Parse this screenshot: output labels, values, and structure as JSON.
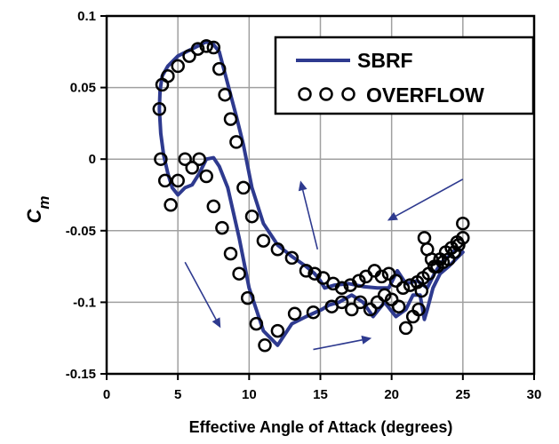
{
  "chart_data": {
    "type": "scatter",
    "xlabel": "Effective Angle of Attack (degrees)",
    "ylabel": "C",
    "ylabel_subscript": "m",
    "xlim": [
      0,
      30
    ],
    "ylim": [
      -0.15,
      0.1
    ],
    "x_ticks": [
      0,
      5,
      10,
      15,
      20,
      25,
      30
    ],
    "x_tick_labels": [
      "0",
      "5",
      "10",
      "15",
      "20",
      "25",
      "30"
    ],
    "y_ticks": [
      -0.15,
      -0.1,
      -0.05,
      0,
      0.05,
      0.1
    ],
    "y_tick_labels": [
      "-0.15",
      "-0.1",
      "-0.05",
      "0",
      "0.05",
      "0.1"
    ],
    "grid": true,
    "legend_position": "top-right",
    "colors": {
      "sbrf": "#2e3a8f",
      "overflow": "#000000",
      "arrow": "#2e3a8f",
      "grid": "#a0a0a0"
    },
    "series": [
      {
        "name": "SBRF",
        "kind": "line",
        "x": [
          3.7,
          3.75,
          3.9,
          4.3,
          5.0,
          6.0,
          7.0,
          7.5,
          7.9,
          8.3,
          8.7,
          9.1,
          9.6,
          10.2,
          11.0,
          12.0,
          13.0,
          14.0,
          14.6,
          15.0,
          15.3,
          16.0,
          17.0,
          18.0,
          19.0,
          19.8,
          20.4,
          21.0,
          21.8,
          22.5,
          23.0,
          23.5,
          24.0,
          24.6,
          25.0,
          24.5,
          24.0,
          23.4,
          22.9,
          22.5,
          22.3,
          22.0,
          21.5,
          21.0,
          20.3,
          19.5,
          18.7,
          18.0,
          17.2,
          16.3,
          15.6,
          15.1,
          14.0,
          13.0,
          12.0,
          11.0,
          10.5,
          10.0,
          9.3,
          8.5,
          7.9,
          7.5,
          7.0,
          6.5,
          6.0,
          5.5,
          5.0,
          4.6,
          4.3,
          4.0,
          3.8,
          3.7
        ],
        "y": [
          0.035,
          0.048,
          0.058,
          0.065,
          0.072,
          0.077,
          0.082,
          0.08,
          0.075,
          0.06,
          0.045,
          0.03,
          0.01,
          -0.02,
          -0.045,
          -0.06,
          -0.068,
          -0.075,
          -0.08,
          -0.085,
          -0.09,
          -0.088,
          -0.087,
          -0.089,
          -0.09,
          -0.09,
          -0.078,
          -0.087,
          -0.085,
          -0.09,
          -0.08,
          -0.072,
          -0.068,
          -0.062,
          -0.065,
          -0.07,
          -0.075,
          -0.08,
          -0.09,
          -0.105,
          -0.112,
          -0.095,
          -0.095,
          -0.105,
          -0.11,
          -0.1,
          -0.11,
          -0.1,
          -0.095,
          -0.1,
          -0.102,
          -0.105,
          -0.11,
          -0.115,
          -0.13,
          -0.12,
          -0.105,
          -0.09,
          -0.055,
          -0.02,
          -0.005,
          0.001,
          0.0,
          -0.01,
          -0.018,
          -0.02,
          -0.025,
          -0.02,
          -0.01,
          0.003,
          0.018,
          0.035
        ]
      },
      {
        "name": "OVERFLOW",
        "kind": "markers",
        "x": [
          3.7,
          3.9,
          4.3,
          5.0,
          5.8,
          6.4,
          7.0,
          7.5,
          7.9,
          8.3,
          8.7,
          9.1,
          9.6,
          10.2,
          11.0,
          12.0,
          13.0,
          14.0,
          14.6,
          15.2,
          15.9,
          16.5,
          17.1,
          17.7,
          18.2,
          18.8,
          19.3,
          19.8,
          20.3,
          20.8,
          21.3,
          21.8,
          22.2,
          22.6,
          23.0,
          23.4,
          23.8,
          24.2,
          24.6,
          25.0,
          25.0,
          24.7,
          24.4,
          24.0,
          23.6,
          23.2,
          22.8,
          22.5,
          22.3,
          22.1,
          21.9,
          21.5,
          21.0,
          20.5,
          20.0,
          19.5,
          19.0,
          18.5,
          17.8,
          17.2,
          16.5,
          15.8,
          14.5,
          13.2,
          12.0,
          11.1,
          10.5,
          9.9,
          9.3,
          8.7,
          8.1,
          7.5,
          7.0,
          6.5,
          6.0,
          5.5,
          5.0,
          4.5,
          4.1,
          3.8
        ],
        "y": [
          0.035,
          0.052,
          0.058,
          0.065,
          0.072,
          0.077,
          0.079,
          0.078,
          0.063,
          0.045,
          0.028,
          0.012,
          -0.02,
          -0.04,
          -0.057,
          -0.063,
          -0.069,
          -0.078,
          -0.08,
          -0.083,
          -0.087,
          -0.09,
          -0.088,
          -0.085,
          -0.082,
          -0.078,
          -0.082,
          -0.08,
          -0.085,
          -0.09,
          -0.088,
          -0.086,
          -0.083,
          -0.08,
          -0.075,
          -0.07,
          -0.065,
          -0.062,
          -0.058,
          -0.045,
          -0.055,
          -0.06,
          -0.065,
          -0.07,
          -0.072,
          -0.075,
          -0.07,
          -0.063,
          -0.055,
          -0.092,
          -0.105,
          -0.11,
          -0.118,
          -0.103,
          -0.098,
          -0.095,
          -0.1,
          -0.105,
          -0.1,
          -0.105,
          -0.1,
          -0.103,
          -0.107,
          -0.108,
          -0.12,
          -0.13,
          -0.115,
          -0.097,
          -0.08,
          -0.066,
          -0.048,
          -0.033,
          -0.012,
          0.0,
          -0.006,
          0.0,
          -0.015,
          -0.032,
          -0.015,
          0.0
        ]
      }
    ],
    "arrows": [
      {
        "from": [
          14.8,
          -0.063
        ],
        "to": [
          13.6,
          -0.015
        ]
      },
      {
        "from": [
          25.0,
          -0.014
        ],
        "to": [
          19.7,
          -0.043
        ]
      },
      {
        "from": [
          5.5,
          -0.072
        ],
        "to": [
          8.0,
          -0.118
        ]
      },
      {
        "from": [
          14.5,
          -0.133
        ],
        "to": [
          18.6,
          -0.125
        ]
      }
    ],
    "legend": [
      {
        "label": "SBRF",
        "marker": "line"
      },
      {
        "label": "OVERFLOW",
        "marker": "circles"
      }
    ]
  }
}
